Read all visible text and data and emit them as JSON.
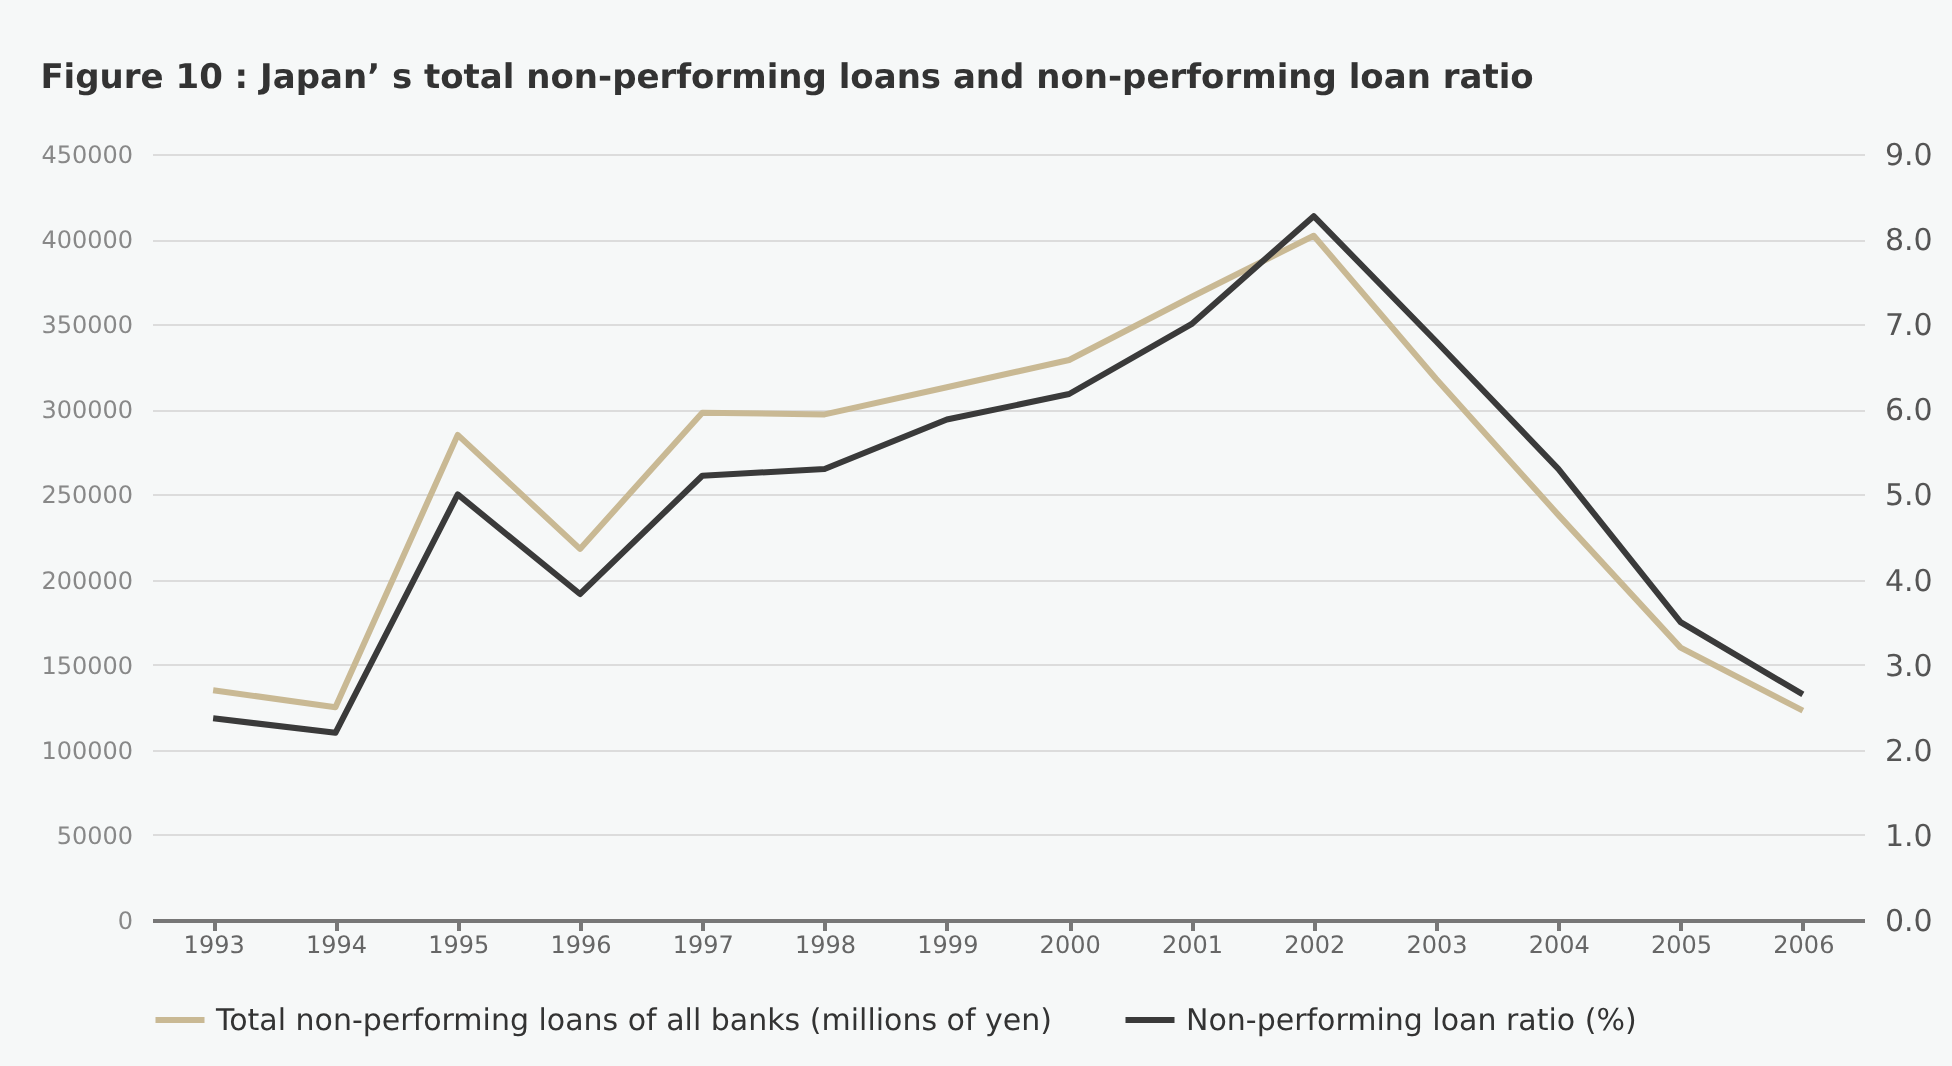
{
  "chart_data": {
    "type": "line",
    "title": "Figure 10 : Japan’ s total non-performing loans and non-performing loan ratio",
    "categories": [
      "1993",
      "1994",
      "1995",
      "1996",
      "1997",
      "1998",
      "1999",
      "2000",
      "2001",
      "2002",
      "2003",
      "2004",
      "2005",
      "2006"
    ],
    "series": [
      {
        "name": "Total non-performing loans of all banks (millions of yen)",
        "color": "#c9b994",
        "values": [
          135000,
          125000,
          285000,
          218000,
          298000,
          297000,
          313000,
          329000,
          366000,
          402000,
          318000,
          238000,
          160000,
          123000
        ]
      },
      {
        "name": "Non-performing loan ratio (%)",
        "color": "#3a3a3a",
        "axis": "y2",
        "values": [
          2.37,
          2.2,
          5.0,
          3.83,
          5.22,
          5.3,
          5.88,
          6.18,
          7.0,
          8.27,
          6.8,
          5.3,
          3.5,
          2.65
        ]
      }
    ],
    "ylim": [
      0,
      450000
    ],
    "yticks": [
      0,
      50000,
      100000,
      150000,
      200000,
      250000,
      300000,
      350000,
      400000,
      450000
    ],
    "y2lim": [
      0,
      9
    ],
    "y2ticks": [
      {
        "value": 0,
        "label": "0.0"
      },
      {
        "value": 1,
        "label": "1.0"
      },
      {
        "value": 2,
        "label": "2.0"
      },
      {
        "value": 3,
        "label": "3.0"
      },
      {
        "value": 4,
        "label": "4.0"
      },
      {
        "value": 5,
        "label": "5.0"
      },
      {
        "value": 6,
        "label": "6.0"
      },
      {
        "value": 7,
        "label": "7.0"
      },
      {
        "value": 8,
        "label": "8.0"
      },
      {
        "value": 9,
        "label": "9.0"
      }
    ],
    "grid": "y",
    "legend": "bottom",
    "marker": "none",
    "line_style": "solid"
  }
}
